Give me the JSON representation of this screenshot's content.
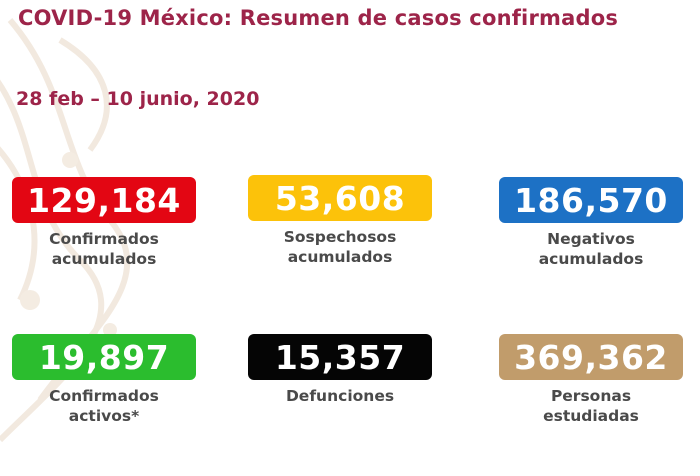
{
  "header": {
    "title": "COVID-19 México: Resumen de casos confirmados",
    "date_range": "28 feb – 10 junio, 2020"
  },
  "cards": [
    {
      "value": "129,184",
      "line1": "Confirmados",
      "line2": "acumulados",
      "color": "#e30613"
    },
    {
      "value": "53,608",
      "line1": "Sospechosos",
      "line2": "acumulados",
      "color": "#fcc20a"
    },
    {
      "value": "186,570",
      "line1": "Negativos",
      "line2": "acumulados",
      "color": "#1d71c5"
    },
    {
      "value": "19,897",
      "line1": "Confirmados",
      "line2": "activos*",
      "color": "#2bbd2e"
    },
    {
      "value": "15,357",
      "line1": "Defunciones",
      "line2": "",
      "color": "#050505"
    },
    {
      "value": "369,362",
      "line1": "Personas",
      "line2": "estudiadas",
      "color": "#c19c6b"
    }
  ]
}
